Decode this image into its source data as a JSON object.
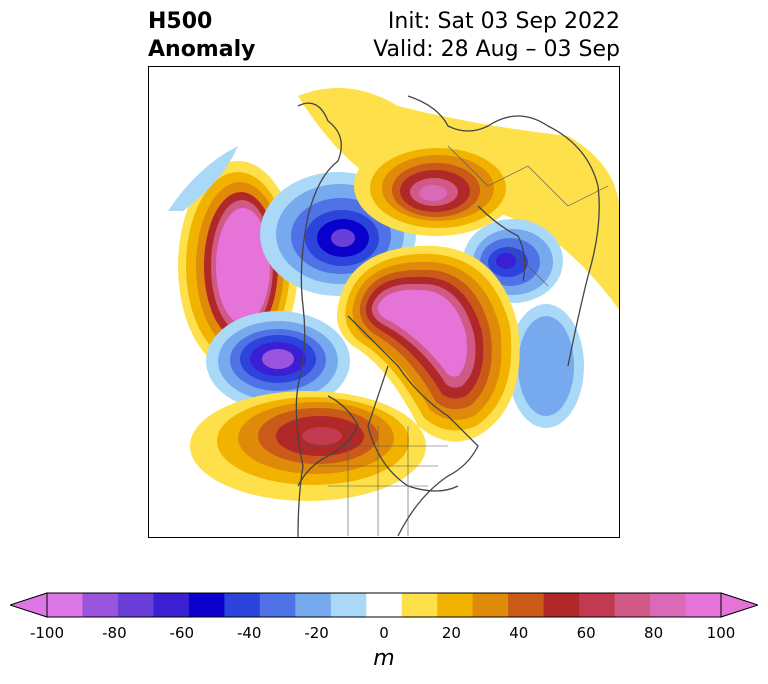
{
  "title": {
    "left": "H500\nAnomaly",
    "init": "Init: Sat 03 Sep 2022",
    "valid": "Valid: 28 Aug – 03 Sep"
  },
  "map": {
    "projection": "polar stereographic (North Pole)",
    "field": "500 hPa geopotential height anomaly",
    "features": [
      {
        "kind": "positive",
        "label": "ridge over Arctic / north Atlantic",
        "peak": 100
      },
      {
        "kind": "positive",
        "label": "ridge over Bering Sea / NE Pacific",
        "peak": 100
      },
      {
        "kind": "positive",
        "label": "ridge over Scandinavia / NW Russia",
        "peak": 70
      },
      {
        "kind": "positive",
        "label": "ridge over western/central US",
        "peak": 70
      },
      {
        "kind": "negative",
        "label": "trough over NE Pacific / Gulf of Alaska",
        "peak": -70
      },
      {
        "kind": "negative",
        "label": "trough over central Siberia",
        "peak": -70
      },
      {
        "kind": "negative",
        "label": "trough over eastern Canada / Baffin",
        "peak": -60
      },
      {
        "kind": "negative",
        "label": "trough over North Atlantic",
        "peak": -30
      }
    ]
  },
  "colorbar": {
    "levels": [
      -100,
      -90,
      -80,
      -70,
      -60,
      -50,
      -40,
      -30,
      -20,
      -10,
      10,
      20,
      30,
      40,
      50,
      60,
      70,
      80,
      90,
      100
    ],
    "ticks": [
      "-100",
      "-80",
      "-60",
      "-40",
      "-20",
      "0",
      "20",
      "40",
      "60",
      "80",
      "100"
    ],
    "unit": "m",
    "colors": [
      "#dd77e6",
      "#9a55de",
      "#6a3ed8",
      "#3a20d2",
      "#0a00cc",
      "#2c43dc",
      "#4f72e6",
      "#76a9ee",
      "#aad9f8",
      "#ffffff",
      "#fde04a",
      "#f2b300",
      "#e08a0a",
      "#c95a18",
      "#b12828",
      "#c23a50",
      "#d05a85",
      "#da6ab8",
      "#e673d8"
    ]
  }
}
